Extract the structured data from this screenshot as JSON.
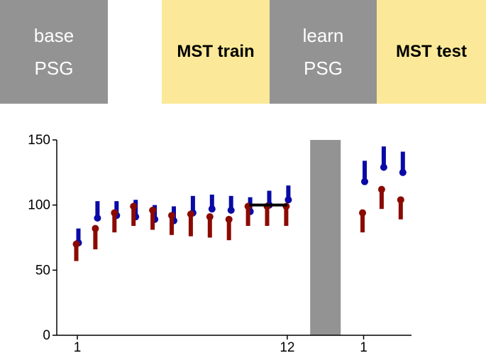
{
  "timeline": {
    "blocks": [
      {
        "lines": [
          "base",
          "PSG"
        ],
        "color": "#939393"
      },
      {
        "lines": [
          "MST train"
        ],
        "color": "#fbe999"
      },
      {
        "lines": [
          "learn",
          "PSG"
        ],
        "color": "#939393"
      },
      {
        "lines": [
          "MST test"
        ],
        "color": "#fbe999"
      }
    ]
  },
  "chart_data": {
    "type": "scatter",
    "title": "",
    "xlabel": "",
    "ylabel": "",
    "ylim": [
      0,
      150
    ],
    "yticks": [
      0,
      50,
      100,
      150
    ],
    "xtick_labels": [
      {
        "label": "1",
        "at_x": 1
      },
      {
        "label": "12",
        "at_x": 12
      },
      {
        "label": "1",
        "at_x": 16
      }
    ],
    "grid": false,
    "legend": "none",
    "reference_line": {
      "x_from": 10,
      "x_to": 12,
      "y": 100,
      "color": "#000000"
    },
    "shaded_gap": {
      "x_from": 13.2,
      "x_to": 14.8,
      "color": "#939393"
    },
    "series": [
      {
        "color": "#0a0aa6",
        "error_direction": "up",
        "points": [
          {
            "x": 1,
            "y": 71,
            "err": 11
          },
          {
            "x": 2,
            "y": 90,
            "err": 13
          },
          {
            "x": 3,
            "y": 92,
            "err": 11
          },
          {
            "x": 4,
            "y": 91,
            "err": 13
          },
          {
            "x": 5,
            "y": 89,
            "err": 11
          },
          {
            "x": 6,
            "y": 88,
            "err": 11
          },
          {
            "x": 7,
            "y": 94,
            "err": 13
          },
          {
            "x": 8,
            "y": 97,
            "err": 11
          },
          {
            "x": 9,
            "y": 96,
            "err": 11
          },
          {
            "x": 10,
            "y": 95,
            "err": 11
          },
          {
            "x": 11,
            "y": 100,
            "err": 11
          },
          {
            "x": 12,
            "y": 104,
            "err": 11
          },
          {
            "x": 16,
            "y": 118,
            "err": 16
          },
          {
            "x": 17,
            "y": 129,
            "err": 16
          },
          {
            "x": 18,
            "y": 125,
            "err": 16
          }
        ]
      },
      {
        "color": "#8b0a00",
        "error_direction": "down",
        "points": [
          {
            "x": 1,
            "y": 70,
            "err": 13
          },
          {
            "x": 2,
            "y": 82,
            "err": 16
          },
          {
            "x": 3,
            "y": 94,
            "err": 15
          },
          {
            "x": 4,
            "y": 99,
            "err": 15
          },
          {
            "x": 5,
            "y": 96,
            "err": 15
          },
          {
            "x": 6,
            "y": 92,
            "err": 15
          },
          {
            "x": 7,
            "y": 93,
            "err": 17
          },
          {
            "x": 8,
            "y": 91,
            "err": 16
          },
          {
            "x": 9,
            "y": 89,
            "err": 16
          },
          {
            "x": 10,
            "y": 99,
            "err": 15
          },
          {
            "x": 11,
            "y": 99,
            "err": 15
          },
          {
            "x": 12,
            "y": 99,
            "err": 15
          },
          {
            "x": 16,
            "y": 94,
            "err": 15
          },
          {
            "x": 17,
            "y": 112,
            "err": 15
          },
          {
            "x": 18,
            "y": 104,
            "err": 15
          }
        ]
      }
    ]
  }
}
